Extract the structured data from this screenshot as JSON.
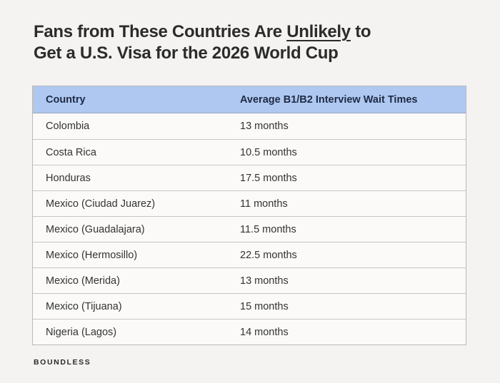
{
  "title": {
    "part1": "Fans from These Countries Are ",
    "underlined": "Unlikely",
    "part2": " to",
    "line2": "Get a U.S. Visa for the 2026 World Cup"
  },
  "table": {
    "headers": [
      "Country",
      "Average B1/B2 Interview Wait Times"
    ],
    "rows": [
      [
        "Colombia",
        "13 months"
      ],
      [
        "Costa Rica",
        "10.5 months"
      ],
      [
        "Honduras",
        "17.5 months"
      ],
      [
        "Mexico (Ciudad Juarez)",
        "11 months"
      ],
      [
        "Mexico (Guadalajara)",
        "11.5 months"
      ],
      [
        "Mexico (Hermosillo)",
        "22.5 months"
      ],
      [
        "Mexico (Merida)",
        "13 months"
      ],
      [
        "Mexico (Tijuana)",
        "15 months"
      ],
      [
        "Nigeria (Lagos)",
        "14 months"
      ]
    ]
  },
  "brand": "BOUNDLESS",
  "colors": {
    "background": "#f4f3f1",
    "header_bg": "#aec8f1",
    "header_text": "#1f2a44",
    "row_bg": "#fbfaf8",
    "border": "#b9b9b9"
  },
  "chart_data": {
    "type": "table",
    "title": "Fans from These Countries Are Unlikely to Get a U.S. Visa for the 2026 World Cup",
    "columns": [
      "Country",
      "Average B1/B2 Interview Wait Times"
    ],
    "categories": [
      "Colombia",
      "Costa Rica",
      "Honduras",
      "Mexico (Ciudad Juarez)",
      "Mexico (Guadalajara)",
      "Mexico (Hermosillo)",
      "Mexico (Merida)",
      "Mexico (Tijuana)",
      "Nigeria (Lagos)"
    ],
    "values": [
      13,
      10.5,
      17.5,
      11,
      11.5,
      22.5,
      13,
      15,
      14
    ],
    "unit": "months"
  }
}
